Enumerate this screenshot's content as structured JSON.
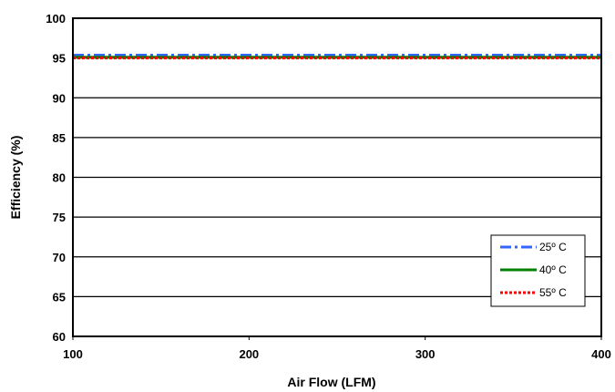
{
  "chart_data": {
    "type": "line",
    "title": "",
    "xlabel": "Air Flow (LFM)",
    "ylabel": "Efficiency (%)",
    "xlim": [
      100,
      400
    ],
    "ylim": [
      60,
      100
    ],
    "xticks": [
      100,
      200,
      300,
      400
    ],
    "yticks": [
      60,
      65,
      70,
      75,
      80,
      85,
      90,
      95,
      100
    ],
    "grid": "horizontal",
    "legend_position": "bottom-right",
    "series": [
      {
        "name": "25º C",
        "x": [
          100,
          400
        ],
        "values": [
          95.3,
          95.3
        ],
        "color": "#3366ff",
        "style": "dash-dot"
      },
      {
        "name": "40º C",
        "x": [
          100,
          400
        ],
        "values": [
          95.1,
          95.1
        ],
        "color": "#008000",
        "style": "solid"
      },
      {
        "name": "55º C",
        "x": [
          100,
          400
        ],
        "values": [
          95.0,
          95.0
        ],
        "color": "#ff0000",
        "style": "dotted"
      }
    ]
  }
}
